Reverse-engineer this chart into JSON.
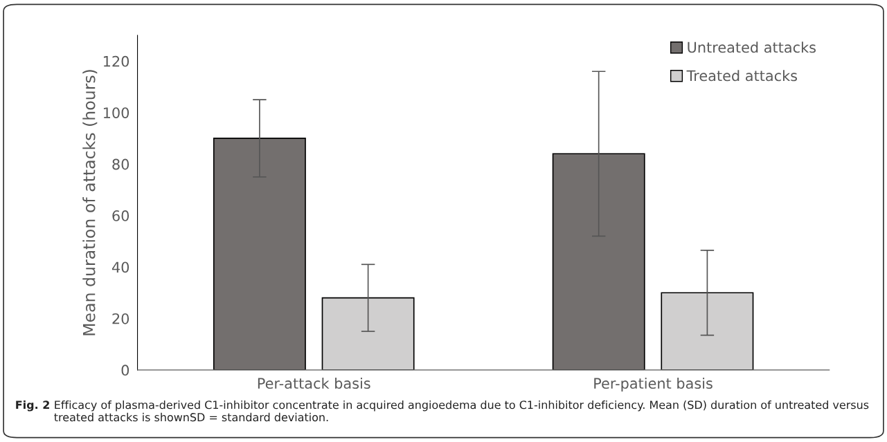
{
  "chart_data": {
    "type": "bar",
    "ylabel": "Mean duration of attacks (hours)",
    "categories": [
      "Per-attack basis",
      "Per-patient basis"
    ],
    "series": [
      {
        "name": "Untreated attacks",
        "color": "#736f6e",
        "values": [
          90,
          84
        ],
        "errors": [
          15,
          32
        ]
      },
      {
        "name": "Treated attacks",
        "color": "#d0cfcf",
        "values": [
          28,
          30
        ],
        "errors": [
          13,
          16.5
        ]
      }
    ],
    "ylim": [
      0,
      130
    ],
    "yticks": [
      0,
      20,
      40,
      60,
      80,
      100,
      120
    ],
    "grid": false,
    "legend": "top right",
    "annotations": [
      "Fig. 2",
      "Efficacy of plasma-derived C1-inhibitor concentrate in acquired angioedema due to C1-inhibitor deficiency. Mean (SD) duration of untreated versus treated attacks is shownSD = standard deviation."
    ]
  }
}
